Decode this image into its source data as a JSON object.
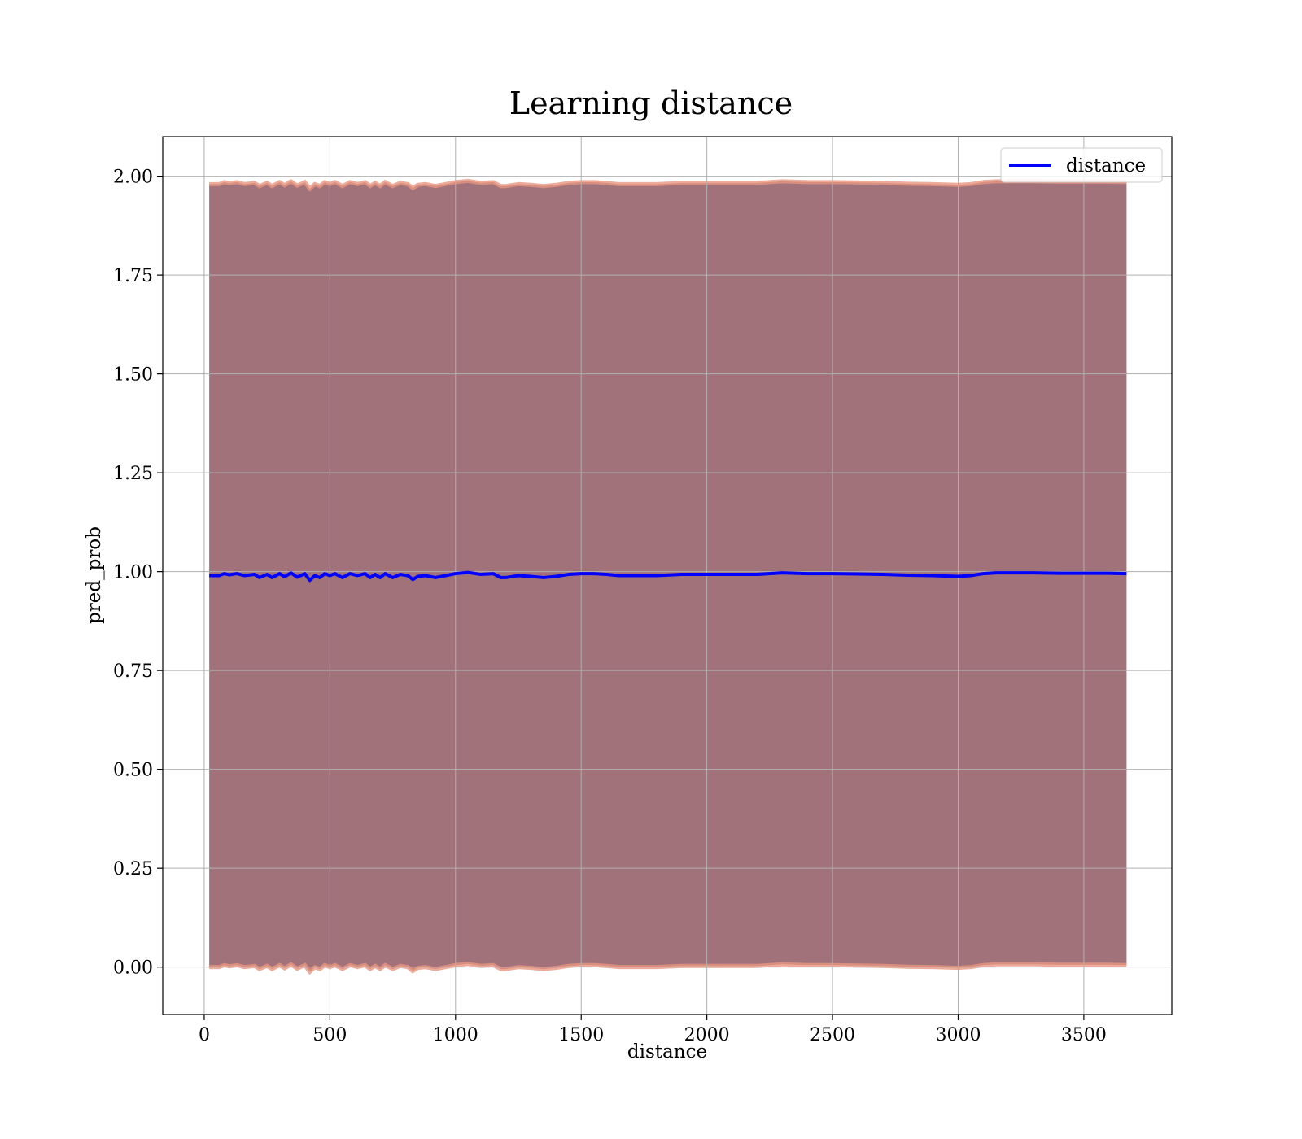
{
  "chart_data": {
    "type": "line",
    "title": "Learning distance",
    "xlabel": "distance",
    "ylabel": "pred_prob",
    "xlim": [
      -165,
      3850
    ],
    "ylim": [
      -0.12,
      2.1
    ],
    "xticks": [
      0,
      500,
      1000,
      1500,
      2000,
      2500,
      3000,
      3500
    ],
    "yticks": [
      0.0,
      0.25,
      0.5,
      0.75,
      1.0,
      1.25,
      1.5,
      1.75,
      2.0
    ],
    "xtick_labels": [
      "0",
      "500",
      "1000",
      "1500",
      "2000",
      "2500",
      "3000",
      "3500"
    ],
    "ytick_labels": [
      "0.00",
      "0.25",
      "0.50",
      "0.75",
      "1.00",
      "1.25",
      "1.50",
      "1.75",
      "2.00"
    ],
    "grid": true,
    "legend_position": "top-right",
    "colors": {
      "line": "#0000ff",
      "band": "#a2727b",
      "band_edge": "#e8967f",
      "grid": "#b0b0b0"
    },
    "series": [
      {
        "name": "distance",
        "x": [
          20,
          60,
          80,
          100,
          130,
          160,
          200,
          220,
          250,
          270,
          300,
          320,
          345,
          370,
          400,
          420,
          440,
          460,
          480,
          500,
          520,
          550,
          580,
          610,
          640,
          660,
          680,
          700,
          720,
          750,
          780,
          810,
          830,
          850,
          880,
          920,
          960,
          1000,
          1050,
          1100,
          1150,
          1180,
          1200,
          1250,
          1300,
          1350,
          1400,
          1450,
          1500,
          1550,
          1600,
          1650,
          1700,
          1800,
          1900,
          2000,
          2100,
          2200,
          2300,
          2400,
          2500,
          2600,
          2700,
          2800,
          2900,
          3000,
          3050,
          3100,
          3150,
          3200,
          3300,
          3400,
          3500,
          3600,
          3670
        ],
        "y": [
          0.99,
          0.99,
          0.995,
          0.992,
          0.995,
          0.99,
          0.993,
          0.985,
          0.993,
          0.985,
          0.995,
          0.987,
          0.997,
          0.986,
          0.995,
          0.978,
          0.99,
          0.985,
          0.995,
          0.99,
          0.995,
          0.985,
          0.995,
          0.99,
          0.995,
          0.985,
          0.993,
          0.985,
          0.995,
          0.985,
          0.993,
          0.99,
          0.98,
          0.988,
          0.99,
          0.985,
          0.99,
          0.995,
          0.998,
          0.993,
          0.995,
          0.985,
          0.985,
          0.99,
          0.988,
          0.985,
          0.988,
          0.993,
          0.995,
          0.995,
          0.993,
          0.99,
          0.99,
          0.99,
          0.993,
          0.993,
          0.993,
          0.993,
          0.997,
          0.995,
          0.995,
          0.994,
          0.993,
          0.991,
          0.99,
          0.988,
          0.99,
          0.995,
          0.997,
          0.997,
          0.997,
          0.996,
          0.996,
          0.996,
          0.995
        ]
      }
    ],
    "band": {
      "upper_offset": 0.99,
      "lower_offset": -0.99
    }
  }
}
